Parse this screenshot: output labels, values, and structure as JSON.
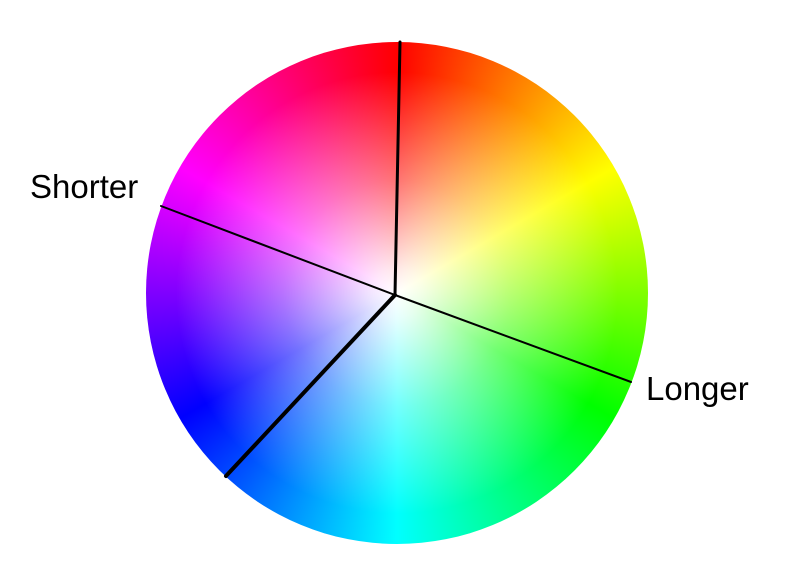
{
  "labels": {
    "shorter": "Shorter",
    "longer": "Longer"
  },
  "wheel": {
    "hue_order_clockwise_from_top": [
      "red",
      "orange",
      "yellow",
      "green",
      "cyan",
      "blue",
      "violet",
      "magenta"
    ],
    "center_color": "#ffffff",
    "divider_color": "#000000"
  }
}
